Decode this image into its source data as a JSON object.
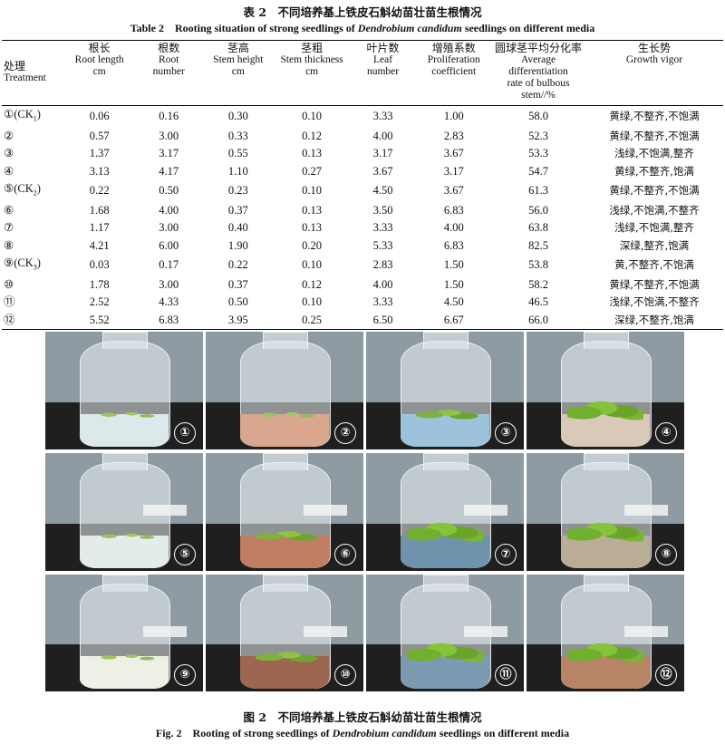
{
  "table": {
    "title_zh": "表 2　不同培养基上铁皮石斛幼苗壮苗生根情况",
    "title_en_pre": "Table 2　Rooting situation of strong seedlings of ",
    "title_en_ital": "Dendrobium candidum",
    "title_en_post": " seedlings on different media",
    "headers": [
      {
        "zh": "处理",
        "en": "Treatment"
      },
      {
        "zh": "根长",
        "en": "Root length",
        "unit": "cm"
      },
      {
        "zh": "根数",
        "en": "Root",
        "unit": "number"
      },
      {
        "zh": "茎高",
        "en": "Stem height",
        "unit": "cm"
      },
      {
        "zh": "茎粗",
        "en": "Stem thickness",
        "unit": "cm"
      },
      {
        "zh": "叶片数",
        "en": "Leaf",
        "unit": "number"
      },
      {
        "zh": "增殖系数",
        "en": "Proliferation",
        "unit": "coefficient"
      },
      {
        "zh": "圆球茎平均分化率",
        "en": "Average differentiation",
        "en2": "rate of bulbous",
        "unit": "stem//%"
      },
      {
        "zh": "生长势",
        "en": "Growth vigor"
      }
    ],
    "rows": [
      {
        "treat": "①",
        "ck": "CK",
        "sub": "1",
        "v": [
          "0.06",
          "0.16",
          "0.30",
          "0.10",
          "3.33",
          "1.00",
          "58.0"
        ],
        "vigor": "黄绿,不整齐,不饱满"
      },
      {
        "treat": "②",
        "ck": "",
        "sub": "",
        "v": [
          "0.57",
          "3.00",
          "0.33",
          "0.12",
          "4.00",
          "2.83",
          "52.3"
        ],
        "vigor": "黄绿,不整齐,不饱满"
      },
      {
        "treat": "③",
        "ck": "",
        "sub": "",
        "v": [
          "1.37",
          "3.17",
          "0.55",
          "0.13",
          "3.17",
          "3.67",
          "53.3"
        ],
        "vigor": "浅绿,不饱满,整齐"
      },
      {
        "treat": "④",
        "ck": "",
        "sub": "",
        "v": [
          "3.13",
          "4.17",
          "1.10",
          "0.27",
          "3.67",
          "3.17",
          "54.7"
        ],
        "vigor": "黄绿,不整齐,饱满"
      },
      {
        "treat": "⑤",
        "ck": "CK",
        "sub": "2",
        "v": [
          "0.22",
          "0.50",
          "0.23",
          "0.10",
          "4.50",
          "3.67",
          "61.3"
        ],
        "vigor": "黄绿,不整齐,不饱满"
      },
      {
        "treat": "⑥",
        "ck": "",
        "sub": "",
        "v": [
          "1.68",
          "4.00",
          "0.37",
          "0.13",
          "3.50",
          "6.83",
          "56.0"
        ],
        "vigor": "浅绿,不饱满,不整齐"
      },
      {
        "treat": "⑦",
        "ck": "",
        "sub": "",
        "v": [
          "1.17",
          "3.00",
          "0.40",
          "0.13",
          "3.33",
          "4.00",
          "63.8"
        ],
        "vigor": "浅绿,不饱满,整齐"
      },
      {
        "treat": "⑧",
        "ck": "",
        "sub": "",
        "v": [
          "4.21",
          "6.00",
          "1.90",
          "0.20",
          "5.33",
          "6.83",
          "82.5"
        ],
        "vigor": "深绿,整齐,饱满"
      },
      {
        "treat": "⑨",
        "ck": "CK",
        "sub": "3",
        "v": [
          "0.03",
          "0.17",
          "0.22",
          "0.10",
          "2.83",
          "1.50",
          "53.8"
        ],
        "vigor": "黄,不整齐,不饱满"
      },
      {
        "treat": "⑩",
        "ck": "",
        "sub": "",
        "v": [
          "1.78",
          "3.00",
          "0.37",
          "0.12",
          "4.00",
          "1.50",
          "58.2"
        ],
        "vigor": "黄绿,不整齐,不饱满"
      },
      {
        "treat": "⑪",
        "ck": "",
        "sub": "",
        "v": [
          "2.52",
          "4.33",
          "0.50",
          "0.10",
          "3.33",
          "4.50",
          "46.5"
        ],
        "vigor": "浅绿,不饱满,不整齐"
      },
      {
        "treat": "⑫",
        "ck": "",
        "sub": "",
        "v": [
          "5.52",
          "6.83",
          "3.95",
          "0.25",
          "6.50",
          "6.67",
          "66.0"
        ],
        "vigor": "深绿,不整齐,饱满"
      }
    ]
  },
  "figure": {
    "title_zh": "图 2　不同培养基上铁皮石斛幼苗壮苗生根情况",
    "title_en_pre": "Fig. 2　Rooting of strong seedlings of ",
    "title_en_ital": "Dendrobium candidum",
    "title_en_post": " seedlings on different media",
    "photos": [
      {
        "num": "①",
        "medium": "#dde8ea",
        "plants": "sparse"
      },
      {
        "num": "②",
        "medium": "#d8a78e",
        "plants": "sparse"
      },
      {
        "num": "③",
        "medium": "#9cc2dc",
        "plants": "normal"
      },
      {
        "num": "④",
        "medium": "#d9c9b8",
        "plants": "dense"
      },
      {
        "num": "⑤",
        "medium": "#e4ecea",
        "plants": "sparse"
      },
      {
        "num": "⑥",
        "medium": "#c07d62",
        "plants": "normal"
      },
      {
        "num": "⑦",
        "medium": "#6f93ad",
        "plants": "dense"
      },
      {
        "num": "⑧",
        "medium": "#b9ad95",
        "plants": "dense"
      },
      {
        "num": "⑨",
        "medium": "#eef0e6",
        "plants": "sparse"
      },
      {
        "num": "⑩",
        "medium": "#9c6651",
        "plants": "normal"
      },
      {
        "num": "⑪",
        "medium": "#7c9ab1",
        "plants": "dense"
      },
      {
        "num": "⑫",
        "medium": "#b78465",
        "plants": "dense"
      }
    ]
  }
}
